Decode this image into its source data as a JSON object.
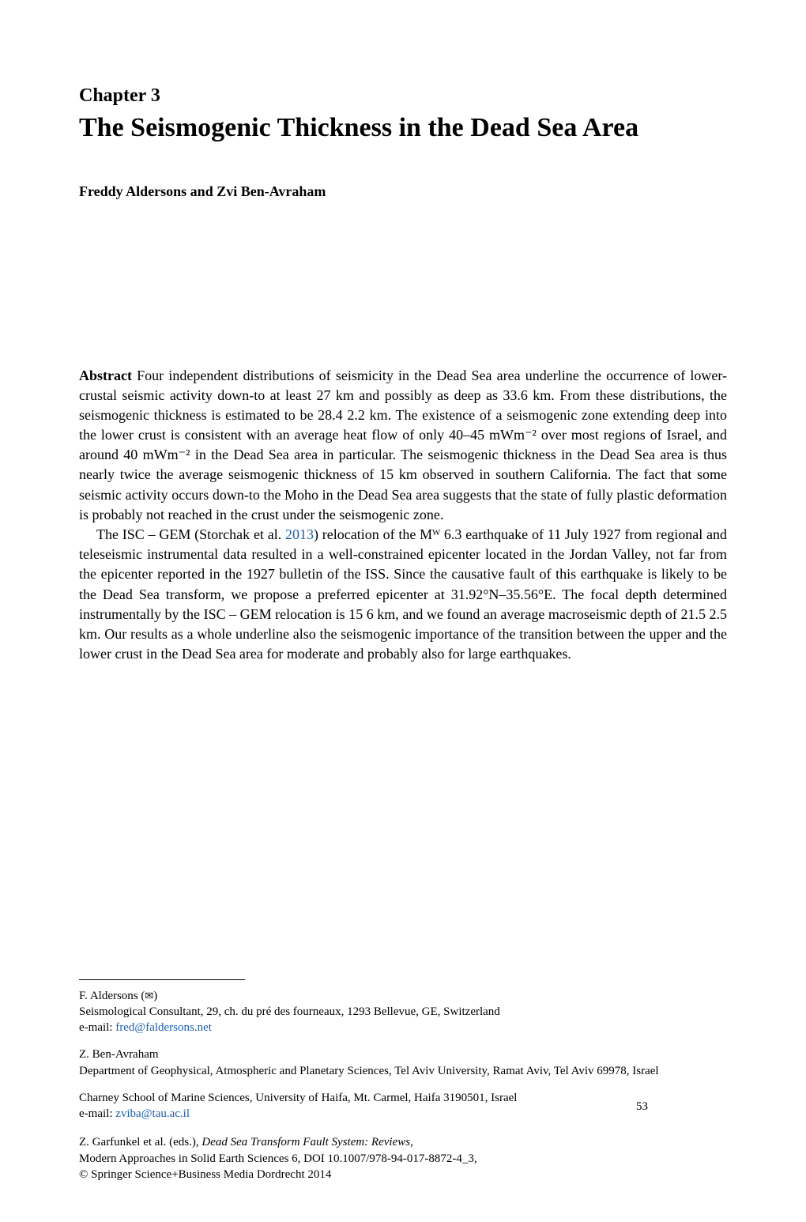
{
  "chapter_label": "Chapter 3",
  "chapter_title": "The Seismogenic Thickness in the Dead Sea Area",
  "authors": "Freddy Aldersons and Zvi Ben-Avraham",
  "abstract_label": "Abstract",
  "abstract_body": "  Four independent distributions of seismicity in the Dead Sea area underline the occurrence of lower-crustal seismic activity down-to at least 27 km and possibly as deep as 33.6 km. From these distributions, the seismogenic thickness is estimated to be 28.4   2.2 km. The existence of a seismogenic zone extending deep into the lower crust is consistent with an average heat flow of only 40–45 mWm⁻² over most regions of Israel, and around 40 mWm⁻² in the Dead Sea area in particular. The seismogenic thickness in the Dead Sea area is thus nearly twice the average seismogenic thickness of 15 km observed in southern California. The fact that some seismic activity occurs down-to the Moho in the Dead Sea area suggests that the state of fully plastic deformation is probably not reached in the crust under the seismogenic zone.",
  "para2_prefix": "The ISC – GEM (Storchak et al. ",
  "para2_ref": "2013",
  "para2_suffix": ") relocation of the Mᵂ 6.3 earthquake of 11 July 1927 from regional and teleseismic instrumental data resulted in a well-constrained epicenter located in the Jordan Valley, not far from the epicenter reported in the 1927 bulletin of the ISS. Since the causative fault of this earthquake is likely to be the Dead Sea transform, we propose a preferred epicenter at 31.92°N–35.56°E. The focal depth determined instrumentally by the ISC – GEM relocation is 15   6 km, and we found an average macroseismic depth of 21.5   2.5 km. Our results as a whole underline also the seismogenic importance of the transition between the upper and the lower crust in the Dead Sea area for moderate and probably also for large earthquakes.",
  "footer": {
    "author1_name": "F. Aldersons (",
    "author1_affil": "Seismological Consultant, 29, ch. du pré des fourneaux, 1293 Bellevue, GE, Switzerland",
    "author1_email_label": "e-mail: ",
    "author1_email": "fred@faldersons.net",
    "author2_name": "Z. Ben-Avraham",
    "author2_affil1": "Department of Geophysical, Atmospheric and Planetary Sciences, Tel Aviv University, Ramat Aviv, Tel Aviv 69978, Israel",
    "author2_affil2": "Charney School of Marine Sciences, University of Haifa, Mt. Carmel, Haifa 3190501, Israel",
    "author2_email_label": "e-mail: ",
    "author2_email": "zviba@tau.ac.il",
    "citation_prefix": "Z. Garfunkel et al. (eds.), ",
    "citation_title": "Dead Sea Transform Fault System: Reviews",
    "citation_line2": "Modern Approaches in Solid Earth Sciences 6, DOI 10.1007/978-94-017-8872-4_3,",
    "citation_line3": "© Springer Science+Business Media Dordrecht 2014",
    "page_num": "53"
  }
}
